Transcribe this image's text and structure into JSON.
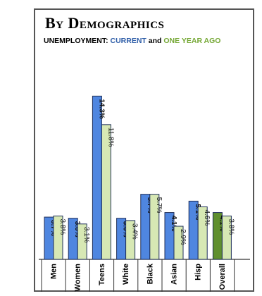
{
  "header": {
    "title": "By Demographics",
    "subtitle_prefix": "UNEMPLOYMENT:",
    "subtitle_current": "CURRENT",
    "subtitle_and": "and",
    "subtitle_ago": "ONE YEAR AGO"
  },
  "colors": {
    "current": "#4f86e0",
    "ago": "#d7e8b4",
    "overall_current": "#5f8f2e",
    "overall_ago": "#d7e8b4",
    "outline": "#1f2f5a"
  },
  "chart_data": {
    "type": "bar",
    "categories": [
      "Men",
      "Women",
      "Teens",
      "White",
      "Black",
      "Asian",
      "Hisp",
      "Overall"
    ],
    "series": [
      {
        "name": "CURRENT",
        "values": [
          3.7,
          3.6,
          14.3,
          3.6,
          5.7,
          4.1,
          5.1,
          4.1
        ],
        "labels": [
          "3.7%",
          "3.6%",
          "14.3%",
          "3.6%",
          "5.7%",
          "4.1%",
          "5.1%",
          "4.1%"
        ]
      },
      {
        "name": "ONE YEAR AGO",
        "values": [
          3.8,
          3.1,
          11.8,
          3.4,
          5.7,
          2.9,
          4.6,
          3.8
        ],
        "labels": [
          "3.8%",
          "3.1%",
          "11.8%",
          "3.4%",
          "5.7%",
          "2.9%",
          "4.6%",
          "3.8%"
        ]
      }
    ],
    "ylim": [
      0,
      15
    ],
    "legend": "subtitle"
  }
}
